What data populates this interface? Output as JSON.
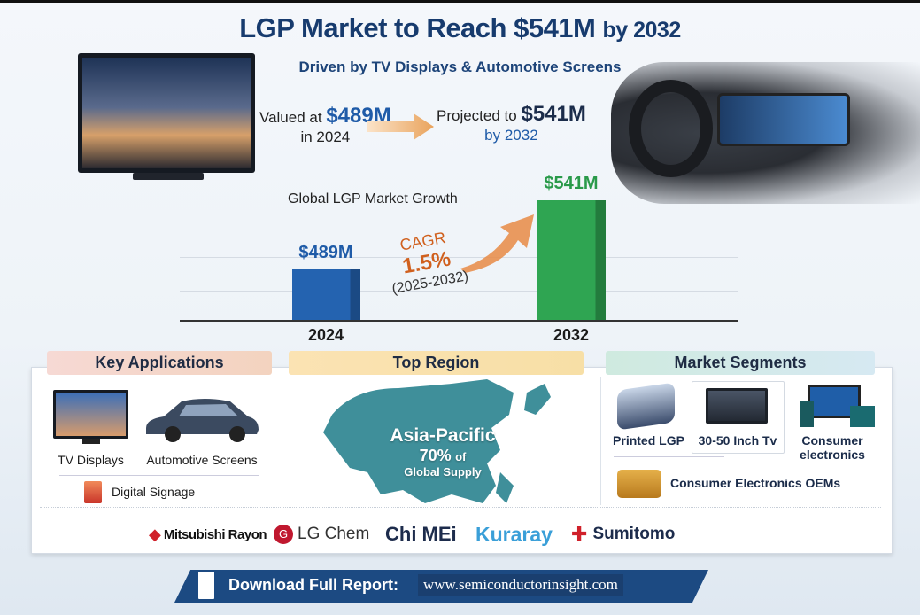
{
  "header": {
    "title_main": "LGP Market to Reach $541M",
    "title_suffix": "by 2032",
    "subtitle": "Driven by TV Displays & Automotive Screens"
  },
  "summary": {
    "valued_prefix": "Valued at",
    "valued_amount": "$489M",
    "valued_year": "in 2024",
    "projected_prefix": "Projected to",
    "projected_amount": "$541M",
    "projected_year": "by 2032"
  },
  "chart_data": {
    "type": "bar",
    "title": "Global LGP Market Growth",
    "categories": [
      "2024",
      "2032"
    ],
    "values": [
      489,
      541
    ],
    "data_labels": [
      "$489M",
      "$541M"
    ],
    "unit": "USD million",
    "colors": [
      "#2463b0",
      "#2fa552"
    ],
    "annotation": {
      "line1": "CAGR",
      "line2": "1.5%",
      "line3": "(2025-2032)"
    },
    "grid": true
  },
  "sections": {
    "key_applications": {
      "title": "Key Applications",
      "items": [
        "TV Displays",
        "Automotive Screens",
        "Digital Signage"
      ]
    },
    "top_region": {
      "title": "Top Region",
      "region": "Asia-Pacific",
      "share": "70%",
      "share_suffix": "of",
      "share_label": "Global Supply"
    },
    "market_segments": {
      "title": "Market Segments",
      "items": [
        "Printed LGP",
        "30-50 Inch Tv",
        "Consumer electronics",
        "Consumer Electronics OEMs"
      ]
    }
  },
  "companies": [
    "Mitsubishi Rayon",
    "LG Chem",
    "Chi MEi",
    "Kuraray",
    "Sumitomo"
  ],
  "footer": {
    "label": "Download Full Report:",
    "separator": ":",
    "url": "www.semiconductorinsight.com"
  },
  "colors": {
    "navy": "#173b6e",
    "blue": "#2463b0",
    "green": "#2fa552",
    "orange": "#d0601e",
    "map": "#3f8f9a",
    "banner": "#1c4a82"
  }
}
